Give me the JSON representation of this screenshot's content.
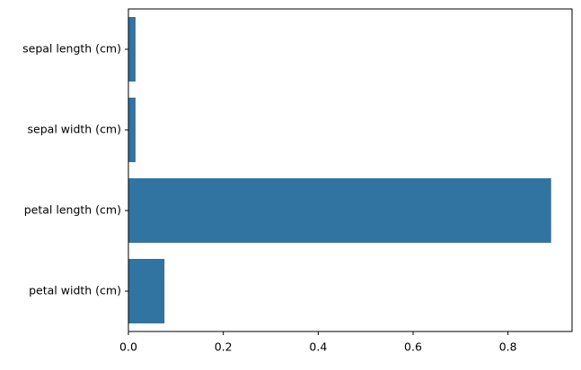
{
  "chart_data": {
    "type": "barh",
    "categories": [
      "sepal length (cm)",
      "sepal width (cm)",
      "petal length (cm)",
      "petal width (cm)"
    ],
    "values": [
      0.015,
      0.015,
      0.891,
      0.076
    ],
    "color": "#3274a1",
    "xlim": [
      0,
      0.935
    ],
    "xticks": [
      {
        "value": 0,
        "label": "0.0"
      },
      0.2,
      0.4,
      0.6,
      0.8
    ],
    "grid": false
  }
}
